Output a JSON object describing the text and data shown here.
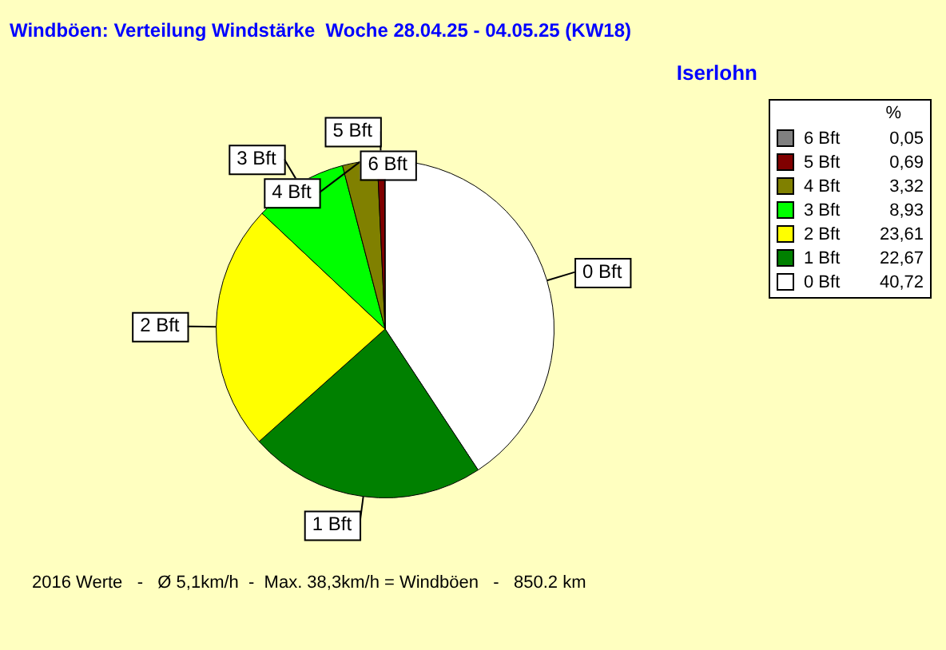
{
  "chart_data": {
    "type": "pie",
    "title": "Windböen: Verteilung Windstärke  Woche 28.04.25 - 04.05.25 (KW18)",
    "subtitle": "Iserlohn",
    "categories": [
      "6 Bft",
      "5 Bft",
      "4 Bft",
      "3 Bft",
      "2 Bft",
      "1 Bft",
      "0 Bft"
    ],
    "values": [
      0.05,
      0.69,
      3.32,
      8.93,
      23.61,
      22.67,
      40.72
    ],
    "value_labels": [
      "0,05",
      "0,69",
      "3,32",
      "8,93",
      "23,61",
      "22,67",
      "40,72"
    ],
    "colors": [
      "#808080",
      "#800000",
      "#808000",
      "#00ff00",
      "#ffff00",
      "#008000",
      "#ffffff"
    ],
    "legend": "top right",
    "legend_title": "%",
    "annotations": [
      "2016 Werte   -   Ø 5,1km/h  -  Max. 38,3km/h = Windböen   -   850.2 km"
    ]
  }
}
